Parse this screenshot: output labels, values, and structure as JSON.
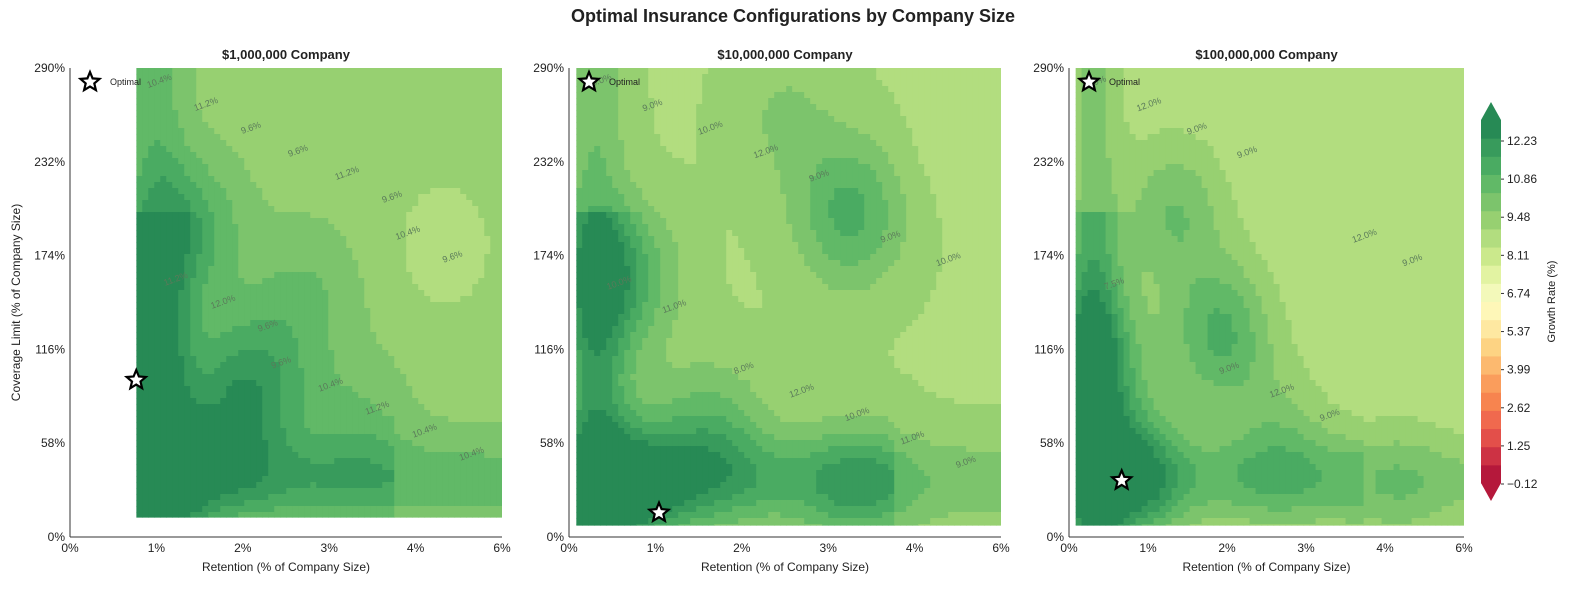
{
  "figure": {
    "title": "Optimal Insurance Configurations by Company Size"
  },
  "chart_data": [
    {
      "type": "heatmap",
      "title": "$1,000,000 Company",
      "xlabel": "Retention (% of Company Size)",
      "ylabel": "Coverage Limit (% of Company Size)",
      "x_ticks": [
        "0%",
        "1%",
        "2%",
        "3%",
        "4%",
        "6%"
      ],
      "y_ticks": [
        "0%",
        "58%",
        "116%",
        "174%",
        "232%",
        "290%"
      ],
      "xlim": [
        0,
        6
      ],
      "ylim": [
        0,
        290
      ],
      "data_extent": {
        "x": [
          0.92,
          6
        ],
        "y": [
          12,
          290
        ]
      },
      "optimal": {
        "x": 0.92,
        "y": 97,
        "label": "Optimal"
      },
      "contour_labels": [
        "10.4%",
        "9.6%",
        "10.4%",
        "11.2%",
        "10.4%",
        "9.6%",
        "9.6%",
        "11.2%",
        "11.2%",
        "9.6%",
        "10.4%",
        "12.0%",
        "11.2%",
        "10.4%",
        "9.6%",
        "9.6%"
      ],
      "hotspots": [
        {
          "x": 1.3,
          "y": 45,
          "v": 12.3
        },
        {
          "x": 1.6,
          "y": 190,
          "v": 12.0
        },
        {
          "x": 2.3,
          "y": 70,
          "v": 11.5
        },
        {
          "x": 3.3,
          "y": 150,
          "v": 10.6
        },
        {
          "x": 1.0,
          "y": 120,
          "v": 11.2
        },
        {
          "x": 3.0,
          "y": 260,
          "v": 9.5
        },
        {
          "x": 5.2,
          "y": 180,
          "v": 8.6
        },
        {
          "x": 5.5,
          "y": 40,
          "v": 9.6
        },
        {
          "x": 2.6,
          "y": 100,
          "v": 11.6
        },
        {
          "x": 4.0,
          "y": 70,
          "v": 10.6
        }
      ]
    },
    {
      "type": "heatmap",
      "title": "$10,000,000 Company",
      "xlabel": "Retention (% of Company Size)",
      "ylabel": "",
      "x_ticks": [
        "0%",
        "1%",
        "2%",
        "3%",
        "4%",
        "6%"
      ],
      "y_ticks": [
        "0%",
        "58%",
        "116%",
        "174%",
        "232%",
        "290%"
      ],
      "xlim": [
        0,
        6
      ],
      "ylim": [
        0,
        290
      ],
      "data_extent": {
        "x": [
          0.1,
          6
        ],
        "y": [
          7,
          290
        ]
      },
      "optimal": {
        "x": 1.25,
        "y": 15,
        "label": "Optimal"
      },
      "contour_labels": [
        "10.0%",
        "8.0%",
        "9.0%",
        "9.0%",
        "12.0%",
        "10.0%",
        "10.0%",
        "10.0%",
        "10.0%",
        "12.0%",
        "11.0%",
        "11.0%",
        "9.0%",
        "9.0%"
      ],
      "hotspots": [
        {
          "x": 0.9,
          "y": 30,
          "v": 12.5
        },
        {
          "x": 0.7,
          "y": 160,
          "v": 12.2
        },
        {
          "x": 2.0,
          "y": 60,
          "v": 11.4
        },
        {
          "x": 3.9,
          "y": 200,
          "v": 11.8
        },
        {
          "x": 4.5,
          "y": 120,
          "v": 9.0
        },
        {
          "x": 5.6,
          "y": 250,
          "v": 8.4
        },
        {
          "x": 3.0,
          "y": 260,
          "v": 10.0
        },
        {
          "x": 4.0,
          "y": 30,
          "v": 10.8
        }
      ]
    },
    {
      "type": "heatmap",
      "title": "$100,000,000 Company",
      "xlabel": "Retention (% of Company Size)",
      "ylabel": "",
      "x_ticks": [
        "0%",
        "1%",
        "2%",
        "3%",
        "4%",
        "6%"
      ],
      "y_ticks": [
        "0%",
        "58%",
        "116%",
        "174%",
        "232%",
        "290%"
      ],
      "xlim": [
        0,
        6
      ],
      "ylim": [
        0,
        290
      ],
      "data_extent": {
        "x": [
          0.1,
          6
        ],
        "y": [
          7,
          290
        ]
      },
      "optimal": {
        "x": 0.8,
        "y": 35,
        "label": "Optimal"
      },
      "contour_labels": [
        "9.0%",
        "9.0%",
        "12.0%",
        "12.0%",
        "12.0%",
        "9.0%",
        "9.0%",
        "9.0%",
        "7.5%",
        "9.0%"
      ],
      "hotspots": [
        {
          "x": 0.9,
          "y": 40,
          "v": 12.6
        },
        {
          "x": 0.4,
          "y": 110,
          "v": 12.0
        },
        {
          "x": 2.3,
          "y": 125,
          "v": 11.8
        },
        {
          "x": 1.6,
          "y": 200,
          "v": 10.8
        },
        {
          "x": 4.5,
          "y": 200,
          "v": 9.0
        },
        {
          "x": 5.6,
          "y": 260,
          "v": 8.4
        },
        {
          "x": 3.2,
          "y": 60,
          "v": 10.2
        },
        {
          "x": 5.0,
          "y": 30,
          "v": 9.6
        }
      ]
    }
  ],
  "colorbar": {
    "label": "Growth Rate (%)",
    "ticks": [
      "12.23",
      "10.86",
      "9.48",
      "8.11",
      "6.74",
      "5.37",
      "3.99",
      "2.62",
      "1.25",
      "−0.12"
    ],
    "range": [
      -0.12,
      13.0
    ],
    "levels": 20,
    "colors": [
      "#b5183b",
      "#cd3244",
      "#e34f4a",
      "#f0694e",
      "#f7844f",
      "#fa9d5c",
      "#fcb96f",
      "#fdd383",
      "#fee8a1",
      "#fef7b8",
      "#f3f9ba",
      "#e2f3a2",
      "#cbe98c",
      "#b2dd7f",
      "#97d071",
      "#7cc46c",
      "#61b967",
      "#4aab62",
      "#389b5c",
      "#278a55"
    ]
  }
}
